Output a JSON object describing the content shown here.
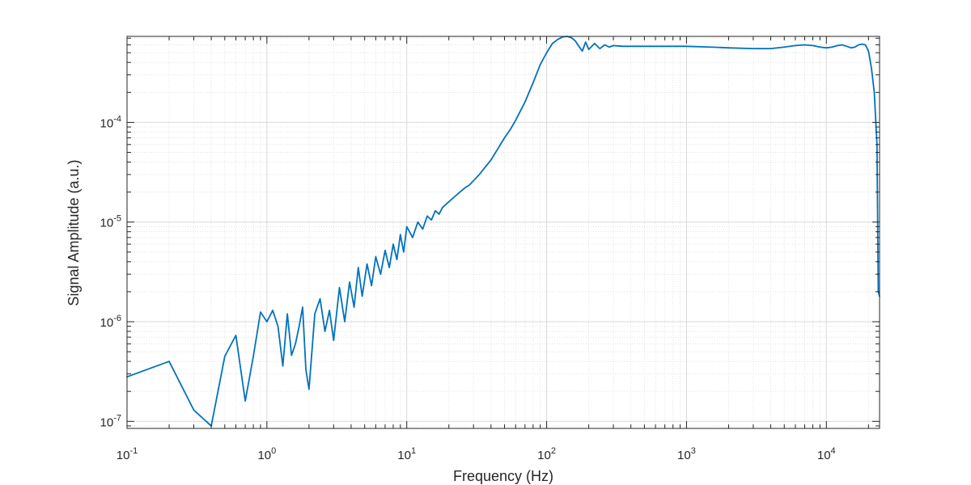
{
  "chart_data": {
    "type": "line",
    "title": "",
    "xlabel": "Frequency (Hz)",
    "ylabel": "Signal Amplitude (a.u.)",
    "x_scale": "log",
    "y_scale": "log",
    "xlim": [
      0.1,
      24000
    ],
    "ylim": [
      8.5e-08,
      0.00073
    ],
    "grid": true,
    "minor_grid": true,
    "line_color": "#0072BD",
    "x_ticks": [
      {
        "base": "10",
        "exp": "-1"
      },
      {
        "base": "10",
        "exp": "0"
      },
      {
        "base": "10",
        "exp": "1"
      },
      {
        "base": "10",
        "exp": "2"
      },
      {
        "base": "10",
        "exp": "3"
      },
      {
        "base": "10",
        "exp": "4"
      }
    ],
    "y_ticks": [
      {
        "base": "10",
        "exp": "-7"
      },
      {
        "base": "10",
        "exp": "-6"
      },
      {
        "base": "10",
        "exp": "-5"
      },
      {
        "base": "10",
        "exp": "-4"
      }
    ],
    "series": [
      {
        "x": [
          0.1,
          0.2,
          0.3,
          0.4,
          0.5,
          0.6,
          0.7,
          0.8,
          0.9,
          1.0,
          1.1,
          1.2,
          1.3,
          1.4,
          1.5,
          1.6,
          1.7,
          1.8,
          1.9,
          2.0,
          2.2,
          2.4,
          2.6,
          2.8,
          3.0,
          3.3,
          3.6,
          3.9,
          4.2,
          4.5,
          4.8,
          5.2,
          5.6,
          6.0,
          6.5,
          7.0,
          7.5,
          8.0,
          8.5,
          9.0,
          9.5,
          10,
          11,
          12,
          13,
          14,
          15,
          16,
          17,
          18,
          20,
          22,
          24,
          26,
          28,
          30,
          33,
          36,
          40,
          45,
          50,
          55,
          60,
          70,
          80,
          90,
          100,
          110,
          120,
          130,
          140,
          150,
          160,
          170,
          180,
          190,
          200,
          220,
          240,
          260,
          280,
          300,
          350,
          400,
          500,
          700,
          1000,
          1500,
          2000,
          3000,
          4000,
          5000,
          6000,
          7000,
          8000,
          9000,
          10000,
          11000,
          12000,
          13000,
          14000,
          15000,
          16000,
          17000,
          18000,
          19000,
          20000,
          21000,
          22000,
          23000,
          23500,
          24000
        ],
        "y": [
          2.8e-07,
          4e-07,
          1.3e-07,
          9e-08,
          4.5e-07,
          7.3e-07,
          1.6e-07,
          4.5e-07,
          1.25e-06,
          1e-06,
          1.3e-06,
          9e-07,
          3.6e-07,
          1.2e-06,
          4.6e-07,
          6e-07,
          9e-07,
          1.4e-06,
          3.3e-07,
          2.1e-07,
          1.2e-06,
          1.7e-06,
          8e-07,
          1.3e-06,
          6.5e-07,
          2.2e-06,
          1e-06,
          2.5e-06,
          1.4e-06,
          3.5e-06,
          1.8e-06,
          3.8e-06,
          2.3e-06,
          4.5e-06,
          3e-06,
          5.2e-06,
          3.5e-06,
          6e-06,
          4.2e-06,
          7.5e-06,
          5e-06,
          9e-06,
          7e-06,
          1e-05,
          8.5e-06,
          1.15e-05,
          1.05e-05,
          1.3e-05,
          1.2e-05,
          1.4e-05,
          1.6e-05,
          1.8e-05,
          2e-05,
          2.2e-05,
          2.35e-05,
          2.6e-05,
          3e-05,
          3.5e-05,
          4.2e-05,
          5.5e-05,
          7e-05,
          8.5e-05,
          0.000105,
          0.00016,
          0.00025,
          0.00038,
          0.0005,
          0.00062,
          0.00068,
          0.00072,
          0.00073,
          0.00071,
          0.00066,
          0.00058,
          0.00052,
          0.00064,
          0.00054,
          0.00062,
          0.00055,
          0.0006,
          0.00057,
          0.00059,
          0.00058,
          0.00058,
          0.00058,
          0.00058,
          0.00058,
          0.00057,
          0.00056,
          0.00055,
          0.00055,
          0.00057,
          0.00059,
          0.0006,
          0.00059,
          0.00057,
          0.00056,
          0.00057,
          0.00059,
          0.0006,
          0.00058,
          0.00056,
          0.00057,
          0.0006,
          0.00061,
          0.0006,
          0.00052,
          0.00035,
          0.0002,
          6e-05,
          2e-06,
          1.8e-06
        ]
      }
    ]
  }
}
